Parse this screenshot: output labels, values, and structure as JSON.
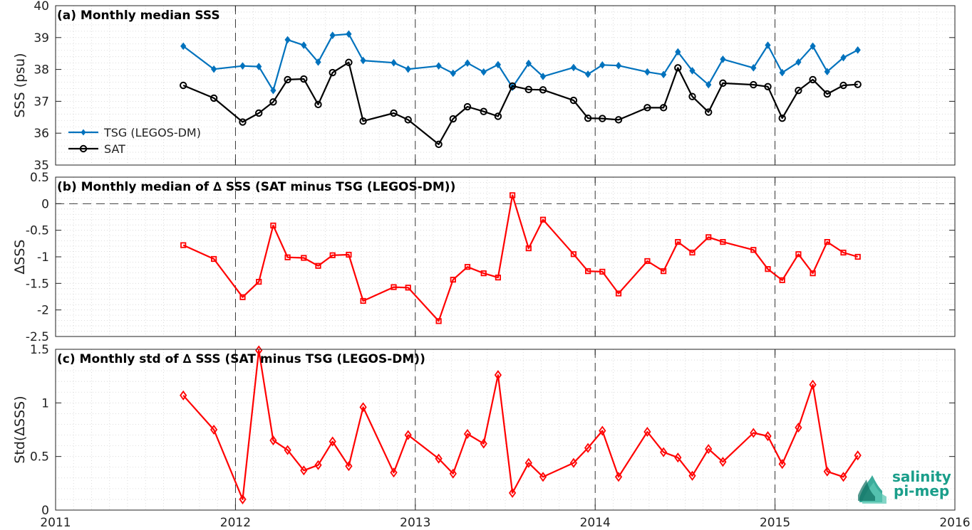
{
  "chart_data": [
    {
      "type": "line",
      "panel_title": "(a) Monthly median SSS",
      "ylabel": "SSS (psu)",
      "ylim": [
        35,
        40
      ],
      "yticks": [
        35,
        36,
        37,
        38,
        39,
        40
      ],
      "xlim": [
        2011,
        2016
      ],
      "xticks": [
        2011,
        2012,
        2013,
        2014,
        2015,
        2016
      ],
      "grid": true,
      "legend_position": "lower-left",
      "series": [
        {
          "name": "TSG (LEGOS-DM)",
          "color": "#0072BD",
          "marker": "diamond-filled",
          "x": [
            2011.71,
            2011.88,
            2012.04,
            2012.13,
            2012.21,
            2012.29,
            2012.38,
            2012.46,
            2012.54,
            2012.63,
            2012.71,
            2012.88,
            2012.96,
            2013.13,
            2013.21,
            2013.29,
            2013.38,
            2013.46,
            2013.54,
            2013.63,
            2013.71,
            2013.88,
            2013.96,
            2014.04,
            2014.13,
            2014.29,
            2014.38,
            2014.46,
            2014.54,
            2014.63,
            2014.71,
            2014.88,
            2014.96,
            2015.04,
            2015.13,
            2015.21,
            2015.29,
            2015.38,
            2015.46
          ],
          "y": [
            38.73,
            38.01,
            38.11,
            38.09,
            37.34,
            38.93,
            38.76,
            38.23,
            39.07,
            39.11,
            38.28,
            38.21,
            38.01,
            38.11,
            37.88,
            38.2,
            37.92,
            38.15,
            37.44,
            38.19,
            37.78,
            38.06,
            37.85,
            38.14,
            38.12,
            37.92,
            37.84,
            38.55,
            37.96,
            37.52,
            38.32,
            38.05,
            38.76,
            37.9,
            38.23,
            38.73,
            37.93,
            38.37,
            38.61
          ]
        },
        {
          "name": "SAT",
          "color": "#000000",
          "marker": "circle-open",
          "x": [
            2011.71,
            2011.88,
            2012.04,
            2012.13,
            2012.21,
            2012.29,
            2012.38,
            2012.46,
            2012.54,
            2012.63,
            2012.71,
            2012.88,
            2012.96,
            2013.13,
            2013.21,
            2013.29,
            2013.38,
            2013.46,
            2013.54,
            2013.63,
            2013.71,
            2013.88,
            2013.96,
            2014.04,
            2014.13,
            2014.29,
            2014.38,
            2014.46,
            2014.54,
            2014.63,
            2014.71,
            2014.88,
            2014.96,
            2015.04,
            2015.13,
            2015.21,
            2015.29,
            2015.38,
            2015.46
          ],
          "y": [
            37.5,
            37.1,
            36.35,
            36.63,
            36.98,
            37.68,
            37.7,
            36.9,
            37.9,
            38.22,
            36.38,
            36.63,
            36.42,
            35.65,
            36.45,
            36.83,
            36.68,
            36.53,
            37.48,
            37.37,
            37.36,
            37.03,
            36.47,
            36.46,
            36.42,
            36.8,
            36.8,
            38.05,
            37.15,
            36.66,
            37.57,
            37.52,
            37.46,
            36.47,
            37.34,
            37.68,
            37.23,
            37.5,
            37.53
          ]
        }
      ]
    },
    {
      "type": "line",
      "panel_title": "(b) Monthly median of ∆ SSS (SAT minus TSG (LEGOS-DM))",
      "ylabel": "∆SSS",
      "ylim": [
        -2.5,
        0.5
      ],
      "yticks": [
        -2.5,
        -2,
        -1.5,
        -1,
        -0.5,
        0,
        0.5
      ],
      "xlim": [
        2011,
        2016
      ],
      "xticks": [
        2011,
        2012,
        2013,
        2014,
        2015,
        2016
      ],
      "grid": true,
      "reference_line": 0,
      "series": [
        {
          "color": "#FF0000",
          "marker": "square-open",
          "x": [
            2011.71,
            2011.88,
            2012.04,
            2012.13,
            2012.21,
            2012.29,
            2012.38,
            2012.46,
            2012.54,
            2012.63,
            2012.71,
            2012.88,
            2012.96,
            2013.13,
            2013.21,
            2013.29,
            2013.38,
            2013.46,
            2013.54,
            2013.63,
            2013.71,
            2013.88,
            2013.96,
            2014.04,
            2014.13,
            2014.29,
            2014.38,
            2014.46,
            2014.54,
            2014.63,
            2014.71,
            2014.88,
            2014.96,
            2015.04,
            2015.13,
            2015.21,
            2015.29,
            2015.38,
            2015.46
          ],
          "y": [
            -0.78,
            -1.04,
            -1.76,
            -1.47,
            -0.41,
            -1.01,
            -1.02,
            -1.17,
            -0.97,
            -0.96,
            -1.83,
            -1.57,
            -1.58,
            -2.21,
            -1.43,
            -1.19,
            -1.31,
            -1.39,
            0.16,
            -0.84,
            -0.3,
            -0.95,
            -1.27,
            -1.28,
            -1.69,
            -1.08,
            -1.27,
            -0.72,
            -0.92,
            -0.63,
            -0.72,
            -0.87,
            -1.23,
            -1.44,
            -0.95,
            -1.31,
            -0.72,
            -0.92,
            -1.0
          ]
        }
      ]
    },
    {
      "type": "line",
      "panel_title": "(c) Monthly std of ∆ SSS (SAT minus TSG (LEGOS-DM))",
      "ylabel": "Std(∆SSS)",
      "ylim": [
        0,
        1.5
      ],
      "yticks": [
        0,
        0.5,
        1,
        1.5
      ],
      "xlim": [
        2011,
        2016
      ],
      "xticks": [
        2011,
        2012,
        2013,
        2014,
        2015,
        2016
      ],
      "grid": true,
      "series": [
        {
          "color": "#FF0000",
          "marker": "diamond-open",
          "x": [
            2011.71,
            2011.88,
            2012.04,
            2012.13,
            2012.21,
            2012.29,
            2012.38,
            2012.46,
            2012.54,
            2012.63,
            2012.71,
            2012.88,
            2012.96,
            2013.13,
            2013.21,
            2013.29,
            2013.38,
            2013.46,
            2013.54,
            2013.63,
            2013.71,
            2013.88,
            2013.96,
            2014.04,
            2014.13,
            2014.29,
            2014.38,
            2014.46,
            2014.54,
            2014.63,
            2014.71,
            2014.88,
            2014.96,
            2015.04,
            2015.13,
            2015.21,
            2015.29,
            2015.38,
            2015.46
          ],
          "y": [
            1.07,
            0.75,
            0.1,
            1.49,
            0.65,
            0.56,
            0.37,
            0.42,
            0.64,
            0.41,
            0.96,
            0.35,
            0.7,
            0.48,
            0.34,
            0.71,
            0.62,
            1.26,
            0.16,
            0.44,
            0.31,
            0.44,
            0.58,
            0.74,
            0.31,
            0.73,
            0.54,
            0.49,
            0.32,
            0.57,
            0.45,
            0.72,
            0.69,
            0.43,
            0.77,
            1.17,
            0.36,
            0.31,
            0.51
          ]
        }
      ]
    }
  ],
  "logo": {
    "line1": "salinity",
    "line2": "pi-mep",
    "color": "#1a9e8a"
  }
}
